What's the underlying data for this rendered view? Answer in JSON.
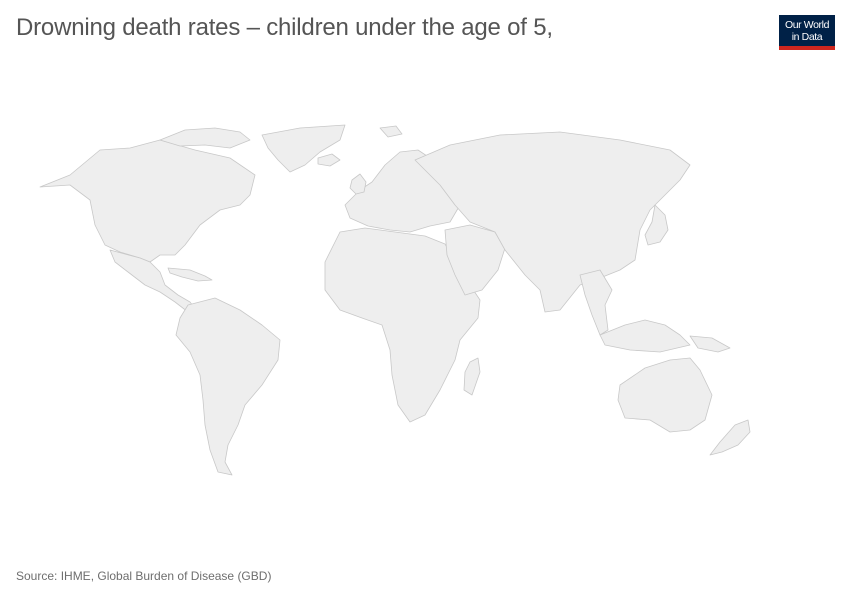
{
  "header": {
    "title": "Drowning death rates – children under the age of 5,"
  },
  "logo": {
    "line1": "Our World",
    "line2": "in Data",
    "bg_color": "#002147",
    "accent_color": "#ce261e"
  },
  "map": {
    "land_fill": "#eeeeee",
    "border_color": "#c8c8c8",
    "regions": [
      "north-america",
      "greenland",
      "central-america",
      "caribbean",
      "south-america",
      "europe",
      "africa",
      "madagascar",
      "middle-east",
      "asia",
      "japan",
      "southeast-asia",
      "indonesia",
      "new-guinea",
      "australia",
      "new-zealand",
      "uk-ireland",
      "iceland",
      "svalbard",
      "arctic-islands"
    ]
  },
  "footer": {
    "source": "Source: IHME, Global Burden of Disease (GBD)"
  }
}
